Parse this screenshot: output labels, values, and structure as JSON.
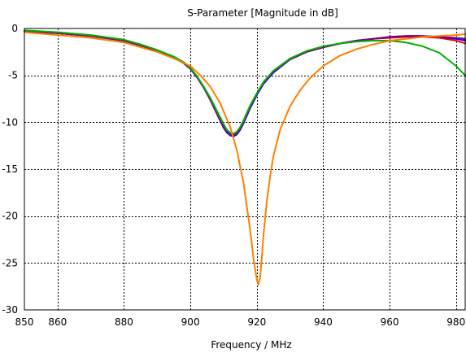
{
  "chart_data": {
    "type": "line",
    "title": "S-Parameter [Magnitude in dB]",
    "xlabel": "Frequency / MHz",
    "ylabel": "",
    "xlim": [
      850,
      983
    ],
    "ylim": [
      -30,
      0
    ],
    "xticks": [
      850,
      860,
      880,
      900,
      920,
      940,
      960,
      980
    ],
    "yticks": [
      0,
      -5,
      -10,
      -15,
      -20,
      -25,
      -30
    ],
    "grid": true,
    "series": [
      {
        "color": "#ff0000",
        "x": [
          850,
          860,
          870,
          880,
          885,
          890,
          895,
          898,
          900,
          902,
          904,
          906,
          908,
          910,
          911,
          912,
          913,
          914,
          915,
          916,
          917,
          918,
          920,
          922,
          925,
          930,
          935,
          940,
          945,
          950,
          955,
          960,
          965,
          970,
          975,
          980,
          983
        ],
        "y": [
          -0.3,
          -0.5,
          -0.8,
          -1.3,
          -1.8,
          -2.4,
          -3.1,
          -3.7,
          -4.3,
          -5.2,
          -6.3,
          -7.6,
          -9.1,
          -10.5,
          -11.0,
          -11.3,
          -11.4,
          -11.2,
          -10.7,
          -10.0,
          -9.2,
          -8.4,
          -7.0,
          -5.8,
          -4.6,
          -3.3,
          -2.5,
          -2.0,
          -1.6,
          -1.3,
          -1.1,
          -1.0,
          -0.9,
          -0.9,
          -1.0,
          -1.3,
          -1.6
        ]
      },
      {
        "color": "#0000ff",
        "x": [
          850,
          860,
          870,
          880,
          885,
          890,
          895,
          898,
          900,
          902,
          904,
          906,
          908,
          910,
          911,
          912,
          913,
          914,
          915,
          916,
          917,
          918,
          920,
          922,
          925,
          930,
          935,
          940,
          945,
          950,
          955,
          960,
          965,
          970,
          975,
          980,
          983
        ],
        "y": [
          -0.3,
          -0.5,
          -0.8,
          -1.3,
          -1.8,
          -2.4,
          -3.1,
          -3.7,
          -4.3,
          -5.2,
          -6.3,
          -7.6,
          -9.1,
          -10.6,
          -11.1,
          -11.4,
          -11.5,
          -11.3,
          -10.8,
          -10.1,
          -9.3,
          -8.5,
          -7.1,
          -5.9,
          -4.7,
          -3.3,
          -2.5,
          -2.0,
          -1.6,
          -1.3,
          -1.1,
          -0.9,
          -0.8,
          -0.8,
          -0.9,
          -1.1,
          -1.3
        ]
      },
      {
        "color": "#800080",
        "x": [
          850,
          860,
          870,
          880,
          885,
          890,
          895,
          898,
          900,
          902,
          904,
          906,
          908,
          910,
          911,
          912,
          913,
          914,
          915,
          916,
          917,
          918,
          920,
          922,
          925,
          930,
          935,
          940,
          945,
          950,
          955,
          960,
          965,
          970,
          975,
          980,
          983
        ],
        "y": [
          -0.3,
          -0.5,
          -0.8,
          -1.3,
          -1.8,
          -2.4,
          -3.1,
          -3.7,
          -4.3,
          -5.2,
          -6.3,
          -7.6,
          -9.1,
          -10.5,
          -11.0,
          -11.3,
          -11.4,
          -11.2,
          -10.7,
          -10.0,
          -9.2,
          -8.4,
          -7.0,
          -5.8,
          -4.6,
          -3.3,
          -2.5,
          -2.0,
          -1.6,
          -1.3,
          -1.1,
          -0.9,
          -0.8,
          -0.8,
          -0.9,
          -1.0,
          -1.1
        ]
      },
      {
        "color": "#00b000",
        "x": [
          850,
          860,
          870,
          880,
          885,
          890,
          895,
          898,
          900,
          902,
          904,
          906,
          908,
          910,
          911,
          912,
          913,
          914,
          915,
          916,
          917,
          918,
          920,
          922,
          925,
          930,
          935,
          940,
          945,
          950,
          955,
          960,
          965,
          970,
          975,
          980,
          983
        ],
        "y": [
          -0.2,
          -0.4,
          -0.7,
          -1.2,
          -1.7,
          -2.3,
          -3.0,
          -3.6,
          -4.2,
          -5.1,
          -6.2,
          -7.4,
          -8.8,
          -10.2,
          -10.8,
          -11.1,
          -11.2,
          -11.0,
          -10.5,
          -9.8,
          -9.0,
          -8.2,
          -6.9,
          -5.7,
          -4.5,
          -3.2,
          -2.4,
          -1.9,
          -1.6,
          -1.4,
          -1.3,
          -1.3,
          -1.5,
          -1.9,
          -2.6,
          -4.0,
          -5.1
        ]
      },
      {
        "color": "#ff7f00",
        "x": [
          850,
          860,
          870,
          880,
          890,
          895,
          900,
          903,
          906,
          909,
          912,
          914,
          916,
          918,
          919,
          920,
          920.5,
          921,
          921.5,
          922,
          923,
          924,
          925,
          927,
          930,
          933,
          936,
          940,
          945,
          950,
          955,
          960,
          965,
          970,
          975,
          980,
          983
        ],
        "y": [
          -0.4,
          -0.7,
          -1.0,
          -1.5,
          -2.5,
          -3.2,
          -4.0,
          -5.0,
          -6.2,
          -8.0,
          -10.5,
          -13.0,
          -16.5,
          -21.5,
          -24.5,
          -26.8,
          -27.3,
          -26.5,
          -24.5,
          -22.0,
          -18.5,
          -15.8,
          -13.6,
          -10.8,
          -8.3,
          -6.6,
          -5.3,
          -4.0,
          -2.9,
          -2.2,
          -1.7,
          -1.3,
          -1.1,
          -0.9,
          -0.8,
          -0.7,
          -0.6
        ]
      }
    ]
  }
}
